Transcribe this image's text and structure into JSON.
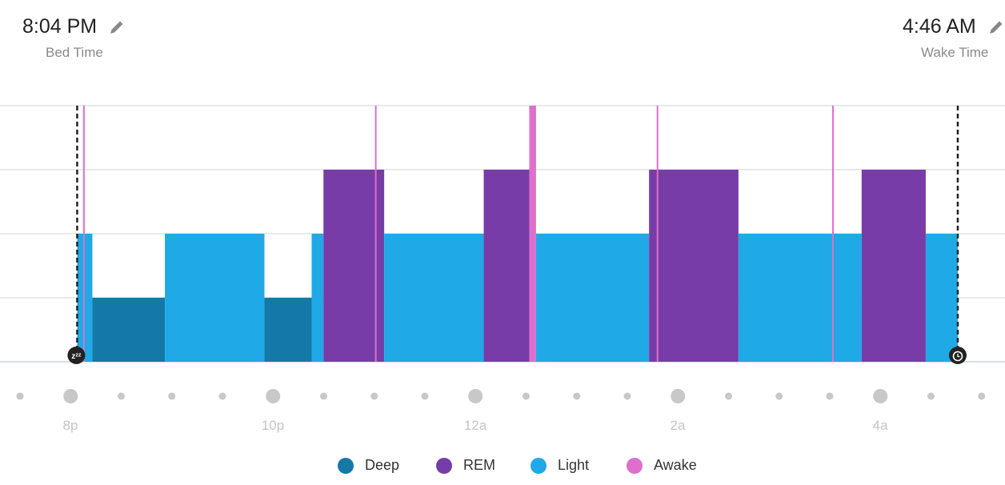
{
  "header": {
    "bed_time": "8:04 PM",
    "bed_label": "Bed Time",
    "wake_time": "4:46 AM",
    "wake_label": "Wake Time",
    "edit_icon": "pencil-icon"
  },
  "colors": {
    "Deep": "#1479a8",
    "REM": "#773ca8",
    "Light": "#1fa9e6",
    "Awake": "#de6fcc"
  },
  "chart_data": {
    "type": "step-area",
    "levels": [
      "Deep",
      "Light",
      "REM",
      "Awake"
    ],
    "x_ticks": [
      "8p",
      "10p",
      "12a",
      "2a",
      "4a"
    ],
    "start": "20:04",
    "end": "04:46",
    "segments": [
      {
        "stage": "Light",
        "start": "20:04",
        "end": "20:13"
      },
      {
        "stage": "Deep",
        "start": "20:13",
        "end": "20:56"
      },
      {
        "stage": "Light",
        "start": "20:56",
        "end": "21:55"
      },
      {
        "stage": "Deep",
        "start": "21:55",
        "end": "22:23"
      },
      {
        "stage": "Light",
        "start": "22:23",
        "end": "22:30"
      },
      {
        "stage": "REM",
        "start": "22:30",
        "end": "23:06"
      },
      {
        "stage": "Light",
        "start": "23:06",
        "end": "00:05"
      },
      {
        "stage": "REM",
        "start": "00:05",
        "end": "00:32"
      },
      {
        "stage": "Awake",
        "start": "00:32",
        "end": "00:36"
      },
      {
        "stage": "Light",
        "start": "00:36",
        "end": "01:43"
      },
      {
        "stage": "REM",
        "start": "01:43",
        "end": "02:36"
      },
      {
        "stage": "Light",
        "start": "02:36",
        "end": "03:49"
      },
      {
        "stage": "REM",
        "start": "03:49",
        "end": "04:27"
      },
      {
        "stage": "Light",
        "start": "04:27",
        "end": "04:46"
      }
    ],
    "brief_awake": [
      "20:08",
      "23:01",
      "01:48",
      "03:32"
    ],
    "grid": true,
    "legend": "bottom",
    "legend_entries": [
      "Deep",
      "REM",
      "Light",
      "Awake"
    ]
  }
}
